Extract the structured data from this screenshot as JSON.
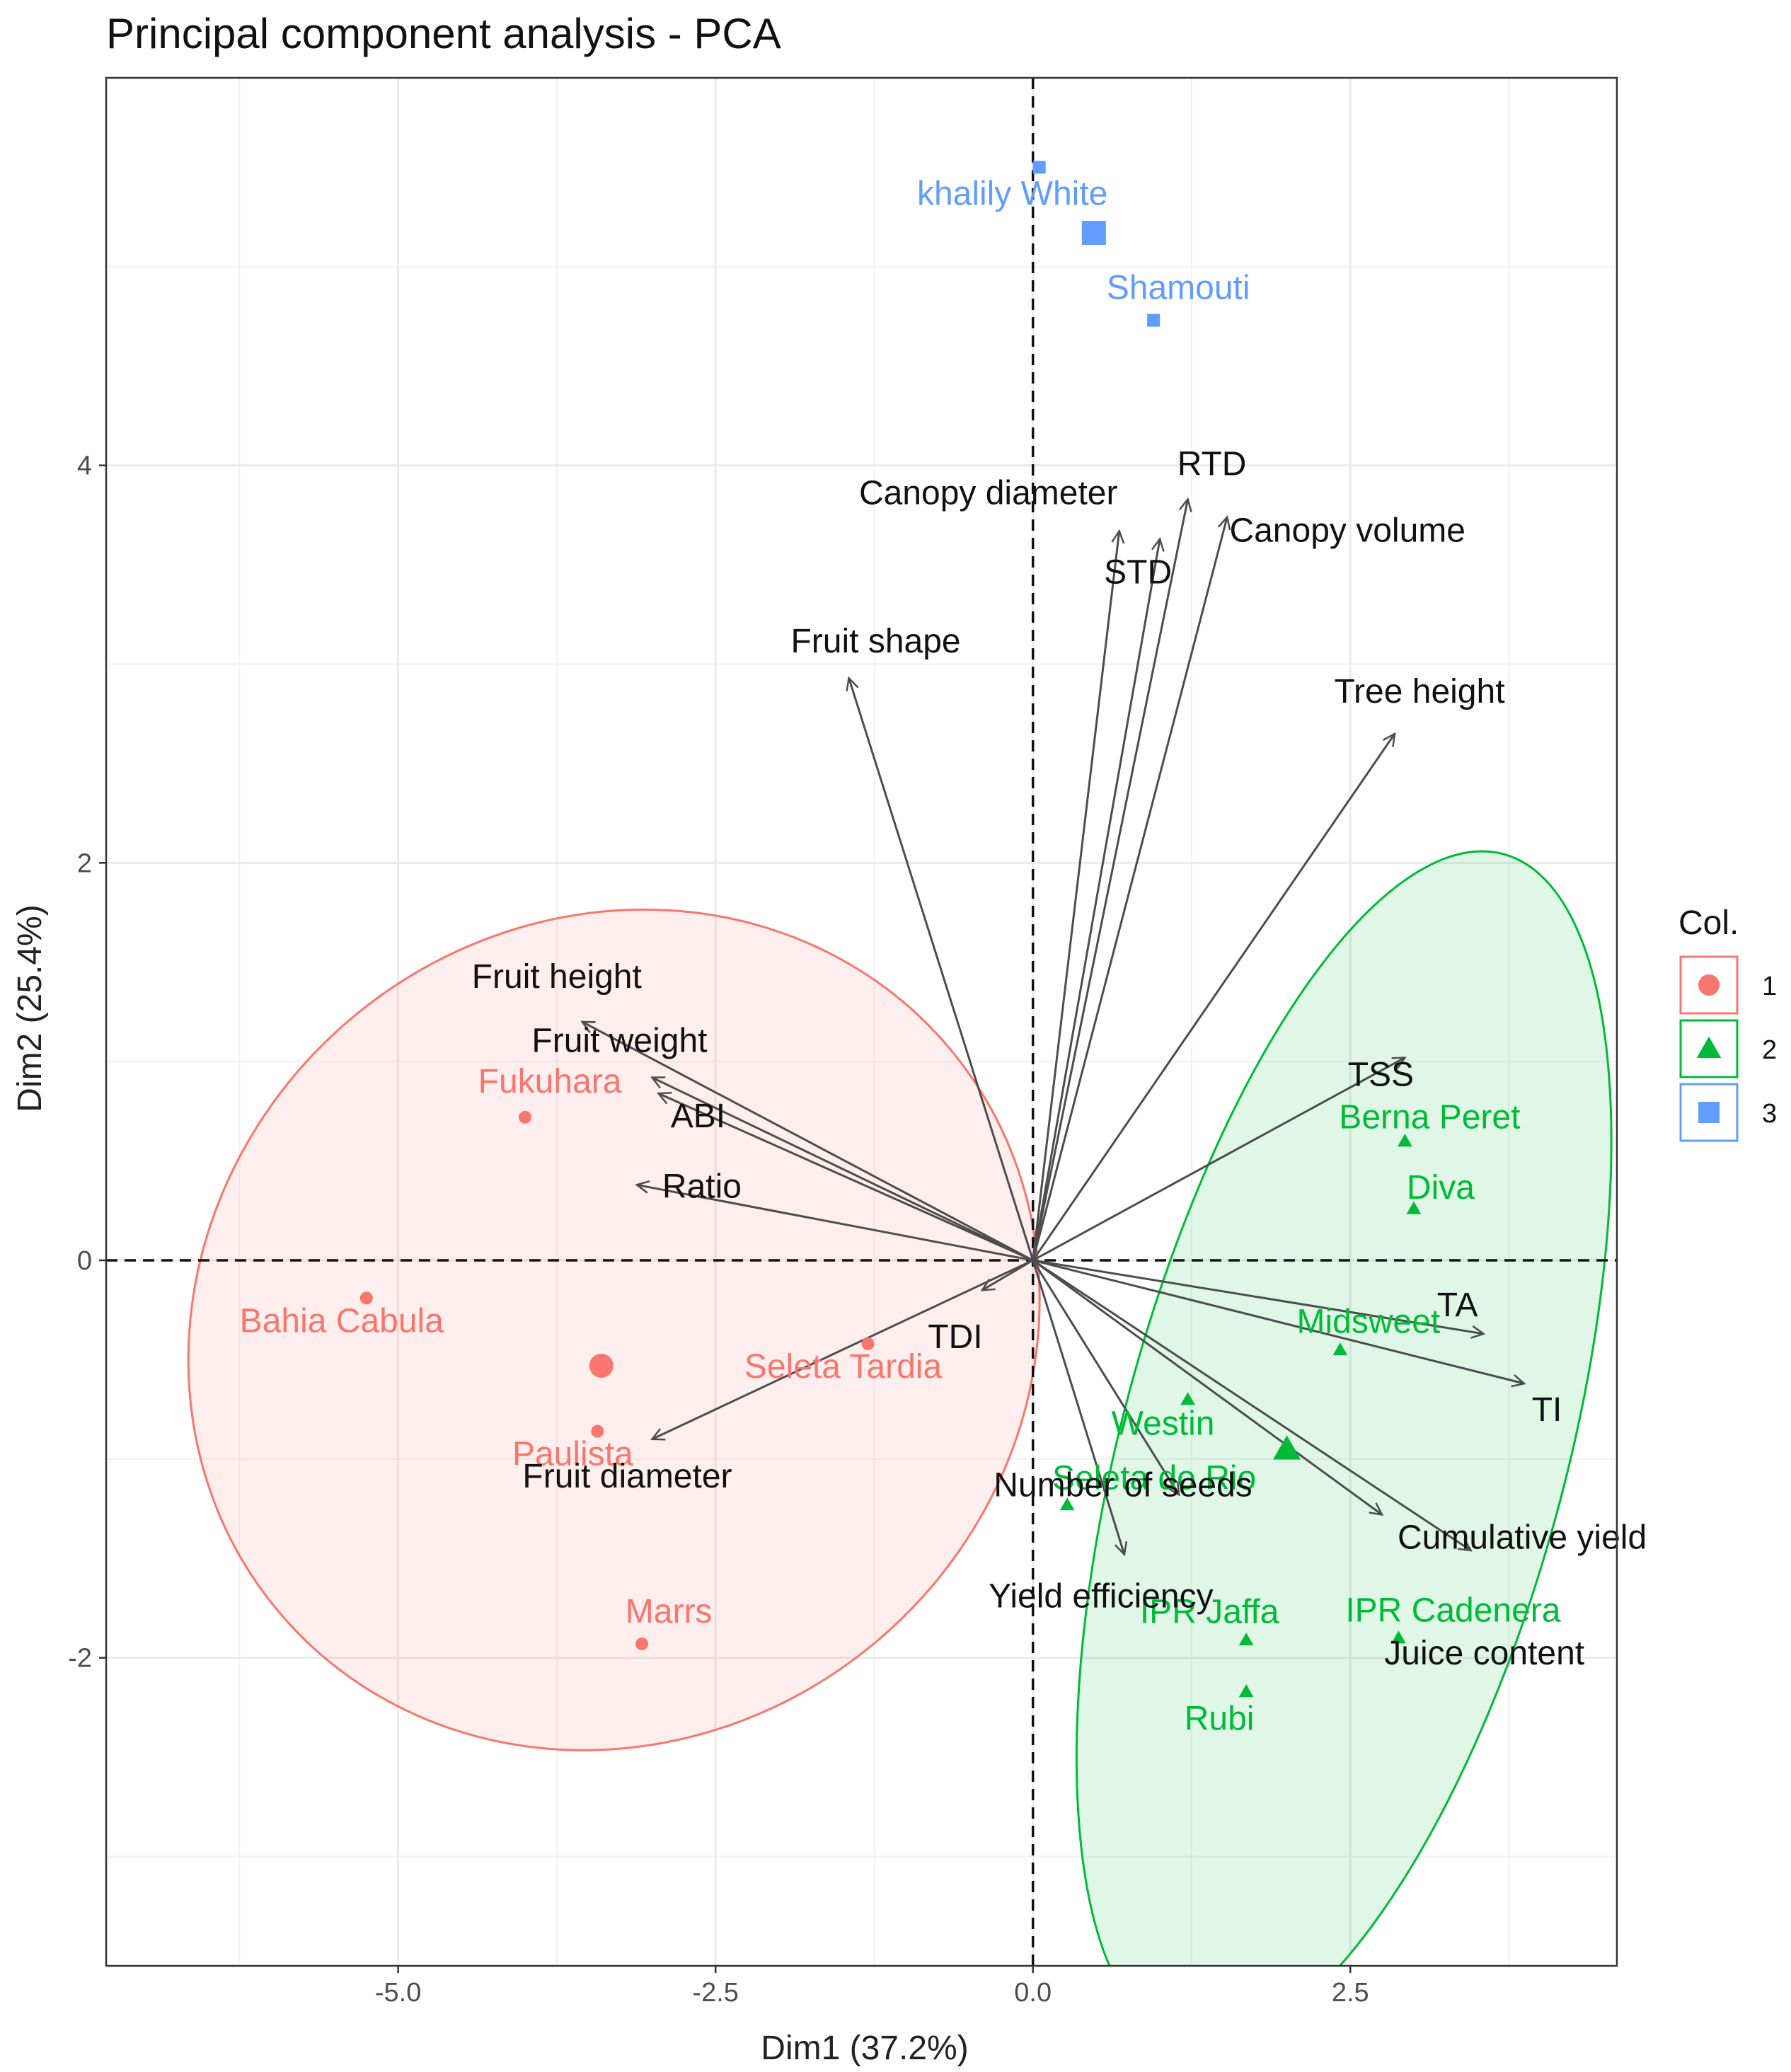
{
  "chart_data": {
    "type": "scatter",
    "subtype": "pca-biplot",
    "title": "Principal component analysis - PCA",
    "xlabel": "Dim1 (37.2%)",
    "ylabel": "Dim2 (25.4%)",
    "xlim": [
      -7.3,
      4.6
    ],
    "ylim": [
      -3.55,
      5.95
    ],
    "xticks": [
      -5.0,
      -2.5,
      0.0,
      2.5
    ],
    "xtick_labels": [
      "-5.0",
      "-2.5",
      "0.0",
      "2.5"
    ],
    "yticks": [
      -2,
      0,
      2,
      4
    ],
    "ytick_labels": [
      "-2",
      "0",
      "2",
      "4"
    ],
    "grid": true,
    "legend": {
      "title": "Col.",
      "position": "right",
      "entries": [
        {
          "label": "1",
          "shape": "circle",
          "color": "#F8766D"
        },
        {
          "label": "2",
          "shape": "triangle",
          "color": "#00BA38"
        },
        {
          "label": "3",
          "shape": "square",
          "color": "#619CFF"
        }
      ]
    },
    "groups": [
      {
        "name": "1",
        "color": "#F8766D",
        "shape": "circle",
        "centroid": [
          -3.4,
          -0.53
        ],
        "ellipse": {
          "center": [
            -3.3,
            -0.35
          ],
          "rx": 3.45,
          "ry": 2.05,
          "angle_deg": -40
        },
        "points": [
          {
            "label": "Fukuhara",
            "x": -4.0,
            "y": 0.72
          },
          {
            "label": "Bahia Cabula",
            "x": -5.25,
            "y": -0.19
          },
          {
            "label": "Seleta Tardia",
            "x": -1.3,
            "y": -0.42
          },
          {
            "label": "Paulista",
            "x": -3.43,
            "y": -0.86
          },
          {
            "label": "Marrs",
            "x": -3.08,
            "y": -1.93
          }
        ]
      },
      {
        "name": "2",
        "color": "#00BA38",
        "shape": "triangle",
        "centroid": [
          2.0,
          -0.95
        ],
        "ellipse": {
          "center": [
            2.45,
            -0.95
          ],
          "rx": 1.75,
          "ry": 3.1,
          "angle_deg": 15
        },
        "points": [
          {
            "label": "Berna Peret",
            "x": 2.93,
            "y": 0.6
          },
          {
            "label": "Diva",
            "x": 3.0,
            "y": 0.26
          },
          {
            "label": "Midsweet",
            "x": 2.42,
            "y": -0.45
          },
          {
            "label": "Westin",
            "x": 1.22,
            "y": -0.7
          },
          {
            "label": "Seleta do Rio",
            "x": 0.27,
            "y": -1.23
          },
          {
            "label": "IPR Jaffa",
            "x": 1.68,
            "y": -1.91
          },
          {
            "label": "IPR Cadenera",
            "x": 2.88,
            "y": -1.9
          },
          {
            "label": "Rubi",
            "x": 1.68,
            "y": -2.17
          }
        ]
      },
      {
        "name": "3",
        "color": "#619CFF",
        "shape": "square",
        "centroid": [
          0.48,
          5.17
        ],
        "points": [
          {
            "label": "khalily White",
            "x": 0.05,
            "y": 5.5
          },
          {
            "label": "Shamouti",
            "x": 0.95,
            "y": 4.73
          }
        ]
      }
    ],
    "variables": [
      {
        "label": "RTD",
        "x": 1.22,
        "y": 3.83
      },
      {
        "label": "Canopy diameter",
        "x": 0.68,
        "y": 3.67
      },
      {
        "label": "STD",
        "x": 1.0,
        "y": 3.63
      },
      {
        "label": "Canopy volume",
        "x": 1.53,
        "y": 3.74
      },
      {
        "label": "Fruit shape",
        "x": -1.45,
        "y": 2.93
      },
      {
        "label": "Tree height",
        "x": 2.85,
        "y": 2.65
      },
      {
        "label": "Fruit height",
        "x": -3.55,
        "y": 1.2
      },
      {
        "label": "Fruit weight",
        "x": -3.0,
        "y": 0.92
      },
      {
        "label": "ABI",
        "x": -2.95,
        "y": 0.84
      },
      {
        "label": "Ratio",
        "x": -3.12,
        "y": 0.38
      },
      {
        "label": "TSS",
        "x": 2.93,
        "y": 1.02
      },
      {
        "label": "TA",
        "x": 3.55,
        "y": -0.37
      },
      {
        "label": "TI",
        "x": 3.87,
        "y": -0.62
      },
      {
        "label": "TDI",
        "x": -0.4,
        "y": -0.15
      },
      {
        "label": "Fruit diameter",
        "x": -3.0,
        "y": -0.9
      },
      {
        "label": "Number of seeds",
        "x": 1.15,
        "y": -1.18
      },
      {
        "label": "Cumulative yield",
        "x": 2.75,
        "y": -1.28
      },
      {
        "label": "Juice content",
        "x": 3.45,
        "y": -1.46
      },
      {
        "label": "Yield efficiency",
        "x": 0.72,
        "y": -1.48
      }
    ]
  }
}
